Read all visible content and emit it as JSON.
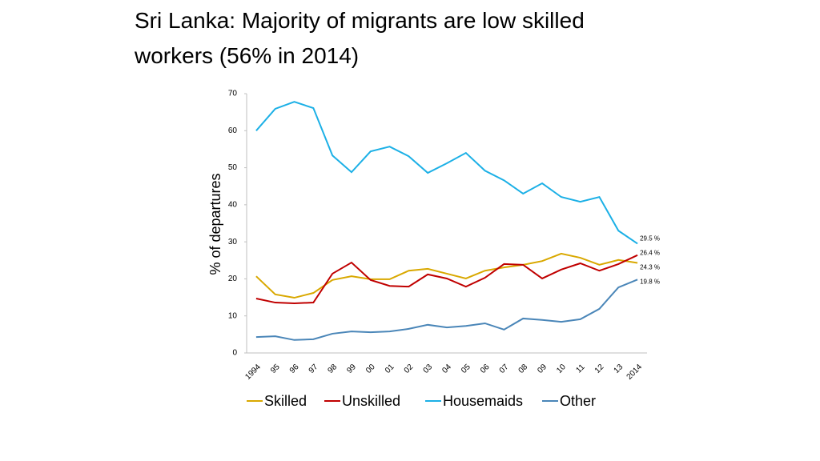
{
  "chart_data": {
    "type": "line",
    "title": "Sri Lanka: Majority of migrants are low skilled workers (56% in 2014)",
    "y_label": "% of departures",
    "categories": [
      "1994",
      "95",
      "96",
      "97",
      "98",
      "99",
      "00",
      "01",
      "02",
      "03",
      "04",
      "05",
      "06",
      "07",
      "08",
      "09",
      "10",
      "11",
      "12",
      "13",
      "2014"
    ],
    "ylim": [
      0,
      70
    ],
    "yticks": [
      0,
      10,
      20,
      30,
      40,
      50,
      60,
      70
    ],
    "series": [
      {
        "name": "Skilled",
        "color": "#d9a800",
        "values": [
          20.7,
          15.8,
          14.9,
          16.2,
          19.7,
          20.7,
          19.9,
          19.9,
          22.2,
          22.7,
          21.4,
          20.1,
          22.2,
          23.1,
          23.8,
          24.8,
          26.8,
          25.7,
          23.8,
          25.1,
          24.3
        ],
        "value_labels": [
          null,
          null,
          null,
          null,
          null,
          null,
          null,
          null,
          null,
          null,
          null,
          null,
          null,
          null,
          null,
          null,
          null,
          null,
          null,
          null,
          "24.3 %"
        ]
      },
      {
        "name": "Unskilled",
        "color": "#c00000",
        "values": [
          14.7,
          13.6,
          13.4,
          13.6,
          21.4,
          24.4,
          19.7,
          18.1,
          17.9,
          21.2,
          20.1,
          17.9,
          20.3,
          24.0,
          23.8,
          20.1,
          22.5,
          24.2,
          22.2,
          24.0,
          26.4
        ],
        "value_labels": [
          null,
          null,
          null,
          null,
          null,
          null,
          null,
          null,
          null,
          null,
          null,
          null,
          null,
          null,
          null,
          null,
          null,
          null,
          null,
          null,
          "26.4 %"
        ]
      },
      {
        "name": "Housemaids",
        "color": "#1cb0e6",
        "values": [
          60.0,
          65.9,
          67.8,
          66.1,
          53.3,
          48.8,
          54.4,
          55.7,
          53.1,
          48.6,
          51.2,
          54.0,
          49.2,
          46.6,
          43.0,
          45.8,
          42.1,
          40.8,
          42.1,
          33.0,
          29.5
        ],
        "value_labels": [
          null,
          null,
          null,
          null,
          null,
          null,
          null,
          null,
          null,
          null,
          null,
          null,
          null,
          null,
          null,
          null,
          null,
          null,
          null,
          null,
          "29.5 %"
        ]
      },
      {
        "name": "Other",
        "color": "#4a86b8",
        "values": [
          4.3,
          4.5,
          3.5,
          3.7,
          5.2,
          5.8,
          5.6,
          5.8,
          6.5,
          7.6,
          6.9,
          7.3,
          8.0,
          6.3,
          9.3,
          8.9,
          8.4,
          9.1,
          11.9,
          17.7,
          19.8
        ],
        "value_labels": [
          null,
          null,
          null,
          null,
          null,
          null,
          null,
          null,
          null,
          null,
          null,
          null,
          null,
          null,
          null,
          null,
          null,
          null,
          null,
          null,
          "19.8 %"
        ]
      }
    ]
  }
}
